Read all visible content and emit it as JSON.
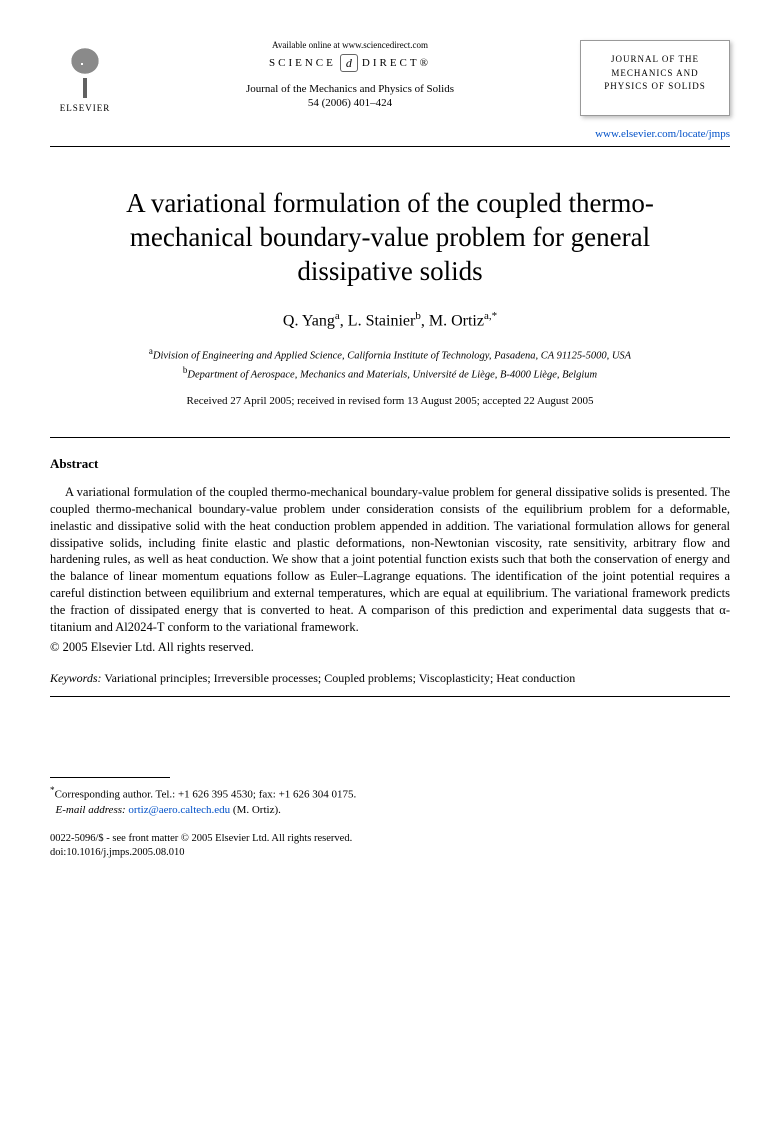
{
  "header": {
    "publisher_logo_label": "ELSEVIER",
    "available_online": "Available online at www.sciencedirect.com",
    "science_direct_left": "SCIENCE",
    "science_direct_symbol": "d",
    "science_direct_right": "DIRECT®",
    "journal_ref_line1": "Journal of the Mechanics and Physics of Solids",
    "journal_ref_line2": "54 (2006) 401–424",
    "journal_box_line1": "JOURNAL OF THE",
    "journal_box_line2": "MECHANICS AND",
    "journal_box_line3": "PHYSICS OF SOLIDS",
    "journal_link": "www.elsevier.com/locate/jmps"
  },
  "title": "A variational formulation of the coupled thermo-mechanical boundary-value problem for general dissipative solids",
  "authors": {
    "a1_name": "Q. Yang",
    "a1_sup": "a",
    "a2_name": "L. Stainier",
    "a2_sup": "b",
    "a3_name": "M. Ortiz",
    "a3_sup": "a,",
    "a3_corr": "*"
  },
  "affiliations": {
    "a_sup": "a",
    "a_text": "Division of Engineering and Applied Science, California Institute of Technology, Pasadena, CA 91125-5000, USA",
    "b_sup": "b",
    "b_text": "Department of Aerospace, Mechanics and Materials, Université de Liège, B-4000 Liège, Belgium"
  },
  "received": "Received 27 April 2005; received in revised form 13 August 2005; accepted 22 August 2005",
  "abstract": {
    "heading": "Abstract",
    "body": "A variational formulation of the coupled thermo-mechanical boundary-value problem for general dissipative solids is presented. The coupled thermo-mechanical boundary-value problem under consideration consists of the equilibrium problem for a deformable, inelastic and dissipative solid with the heat conduction problem appended in addition. The variational formulation allows for general dissipative solids, including finite elastic and plastic deformations, non-Newtonian viscosity, rate sensitivity, arbitrary flow and hardening rules, as well as heat conduction. We show that a joint potential function exists such that both the conservation of energy and the balance of linear momentum equations follow as Euler–Lagrange equations. The identification of the joint potential requires a careful distinction between equilibrium and external temperatures, which are equal at equilibrium. The variational framework predicts the fraction of dissipated energy that is converted to heat. A comparison of this prediction and experimental data suggests that α-titanium and Al2024-T conform to the variational framework.",
    "copyright": "© 2005 Elsevier Ltd. All rights reserved."
  },
  "keywords": {
    "label": "Keywords:",
    "text": " Variational principles; Irreversible processes; Coupled problems; Viscoplasticity; Heat conduction"
  },
  "footnote": {
    "corr_symbol": "*",
    "corr_text": "Corresponding author. Tel.: +1 626 395 4530; fax: +1 626 304 0175.",
    "email_label": "E-mail address:",
    "email": "ortiz@aero.caltech.edu",
    "email_suffix": " (M. Ortiz)."
  },
  "bottom": {
    "issn_line": "0022-5096/$ - see front matter © 2005 Elsevier Ltd. All rights reserved.",
    "doi_line": "doi:10.1016/j.jmps.2005.08.010"
  }
}
